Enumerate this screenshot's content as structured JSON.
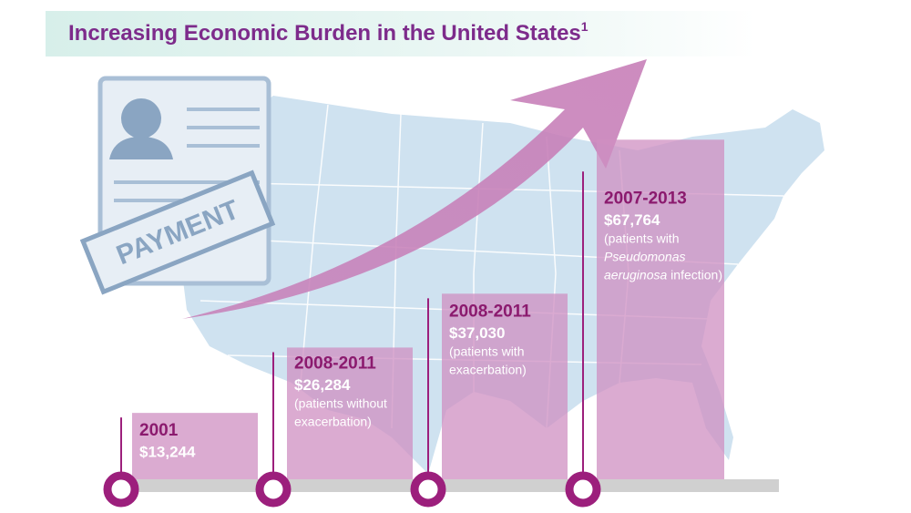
{
  "chart_data": {
    "type": "bar",
    "title": "Increasing Economic Burden in the United States",
    "title_reference": "1",
    "icon_label": "PAYMENT",
    "categories": [
      "2001",
      "2008-2011",
      "2008-2011",
      "2007-2013"
    ],
    "values": [
      13244,
      26284,
      37030,
      67764
    ],
    "value_labels": [
      "$13,244",
      "$26,284",
      "$37,030",
      "$67,764"
    ],
    "descriptions": [
      [],
      [
        [
          {
            "text": "(patients without",
            "italic": false
          }
        ],
        [
          {
            "text": "exacerbation)",
            "italic": false
          }
        ]
      ],
      [
        [
          {
            "text": "(patients with",
            "italic": false
          }
        ],
        [
          {
            "text": "exacerbation)",
            "italic": false
          }
        ]
      ],
      [
        [
          {
            "text": "(patients with",
            "italic": false
          }
        ],
        [
          {
            "text": "Pseudomonas",
            "italic": true
          }
        ],
        [
          {
            "text": "aeruginosa",
            "italic": true
          },
          {
            "text": " infection)",
            "italic": false
          }
        ]
      ]
    ],
    "color": "#cf8fc2",
    "ylim": [
      0,
      70000
    ]
  }
}
